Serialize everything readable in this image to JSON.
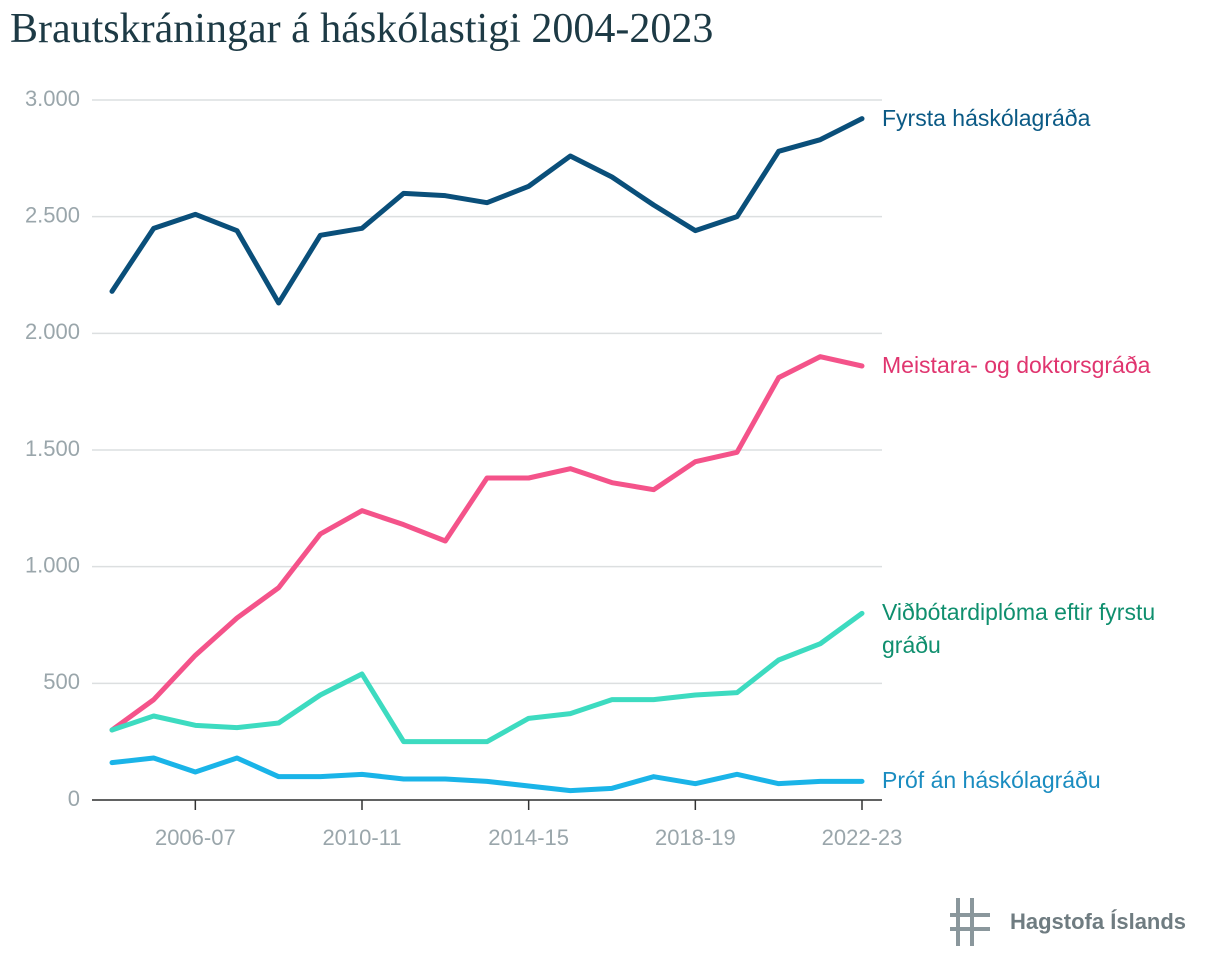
{
  "chart_data": {
    "type": "line",
    "title": "Brautskráningar á háskólastigi 2004-2023",
    "categories": [
      null,
      null,
      "2006-07",
      null,
      null,
      null,
      "2010-11",
      null,
      null,
      null,
      "2014-15",
      null,
      null,
      null,
      "2018-19",
      null,
      null,
      null,
      "2022-23"
    ],
    "ylim": [
      0,
      3000
    ],
    "yticks": [
      0,
      500,
      {
        "value": 1000,
        "label": "1.000"
      },
      {
        "value": 1500,
        "label": "1.500"
      },
      {
        "value": 2000,
        "label": "2.000"
      },
      {
        "value": 2500,
        "label": "2.500"
      },
      {
        "value": 3000,
        "label": "3.000"
      }
    ],
    "grid": true,
    "series": [
      {
        "name": "Fyrsta háskólagráða",
        "color": "#0a4f7a",
        "label_color": "#0b5a85",
        "values": [
          2180,
          2450,
          2510,
          2440,
          2130,
          2420,
          2450,
          2600,
          2590,
          2560,
          2630,
          2760,
          2670,
          2550,
          2440,
          2500,
          2780,
          2830,
          2920
        ]
      },
      {
        "name": "Meistara- og doktorsgráða",
        "color": "#f4538a",
        "label_color": "#e0356f",
        "values": [
          300,
          430,
          620,
          780,
          910,
          1140,
          1240,
          1180,
          1110,
          1380,
          1380,
          1420,
          1360,
          1330,
          1450,
          1490,
          1810,
          1900,
          1860
        ]
      },
      {
        "name": "Viðbótardiplóma eftir fyrstu gráðu",
        "color": "#3ddbc0",
        "label_color": "#0f8f6e",
        "values": [
          300,
          360,
          320,
          310,
          330,
          450,
          540,
          250,
          250,
          250,
          350,
          370,
          430,
          430,
          450,
          460,
          600,
          670,
          800
        ]
      },
      {
        "name": "Próf án háskólagráðu",
        "color": "#1ab4e8",
        "label_color": "#1a8cc0",
        "values": [
          160,
          180,
          120,
          180,
          100,
          100,
          110,
          90,
          90,
          80,
          60,
          40,
          50,
          100,
          70,
          110,
          70,
          80,
          80
        ]
      }
    ],
    "source": "Hagstofa Íslands"
  }
}
